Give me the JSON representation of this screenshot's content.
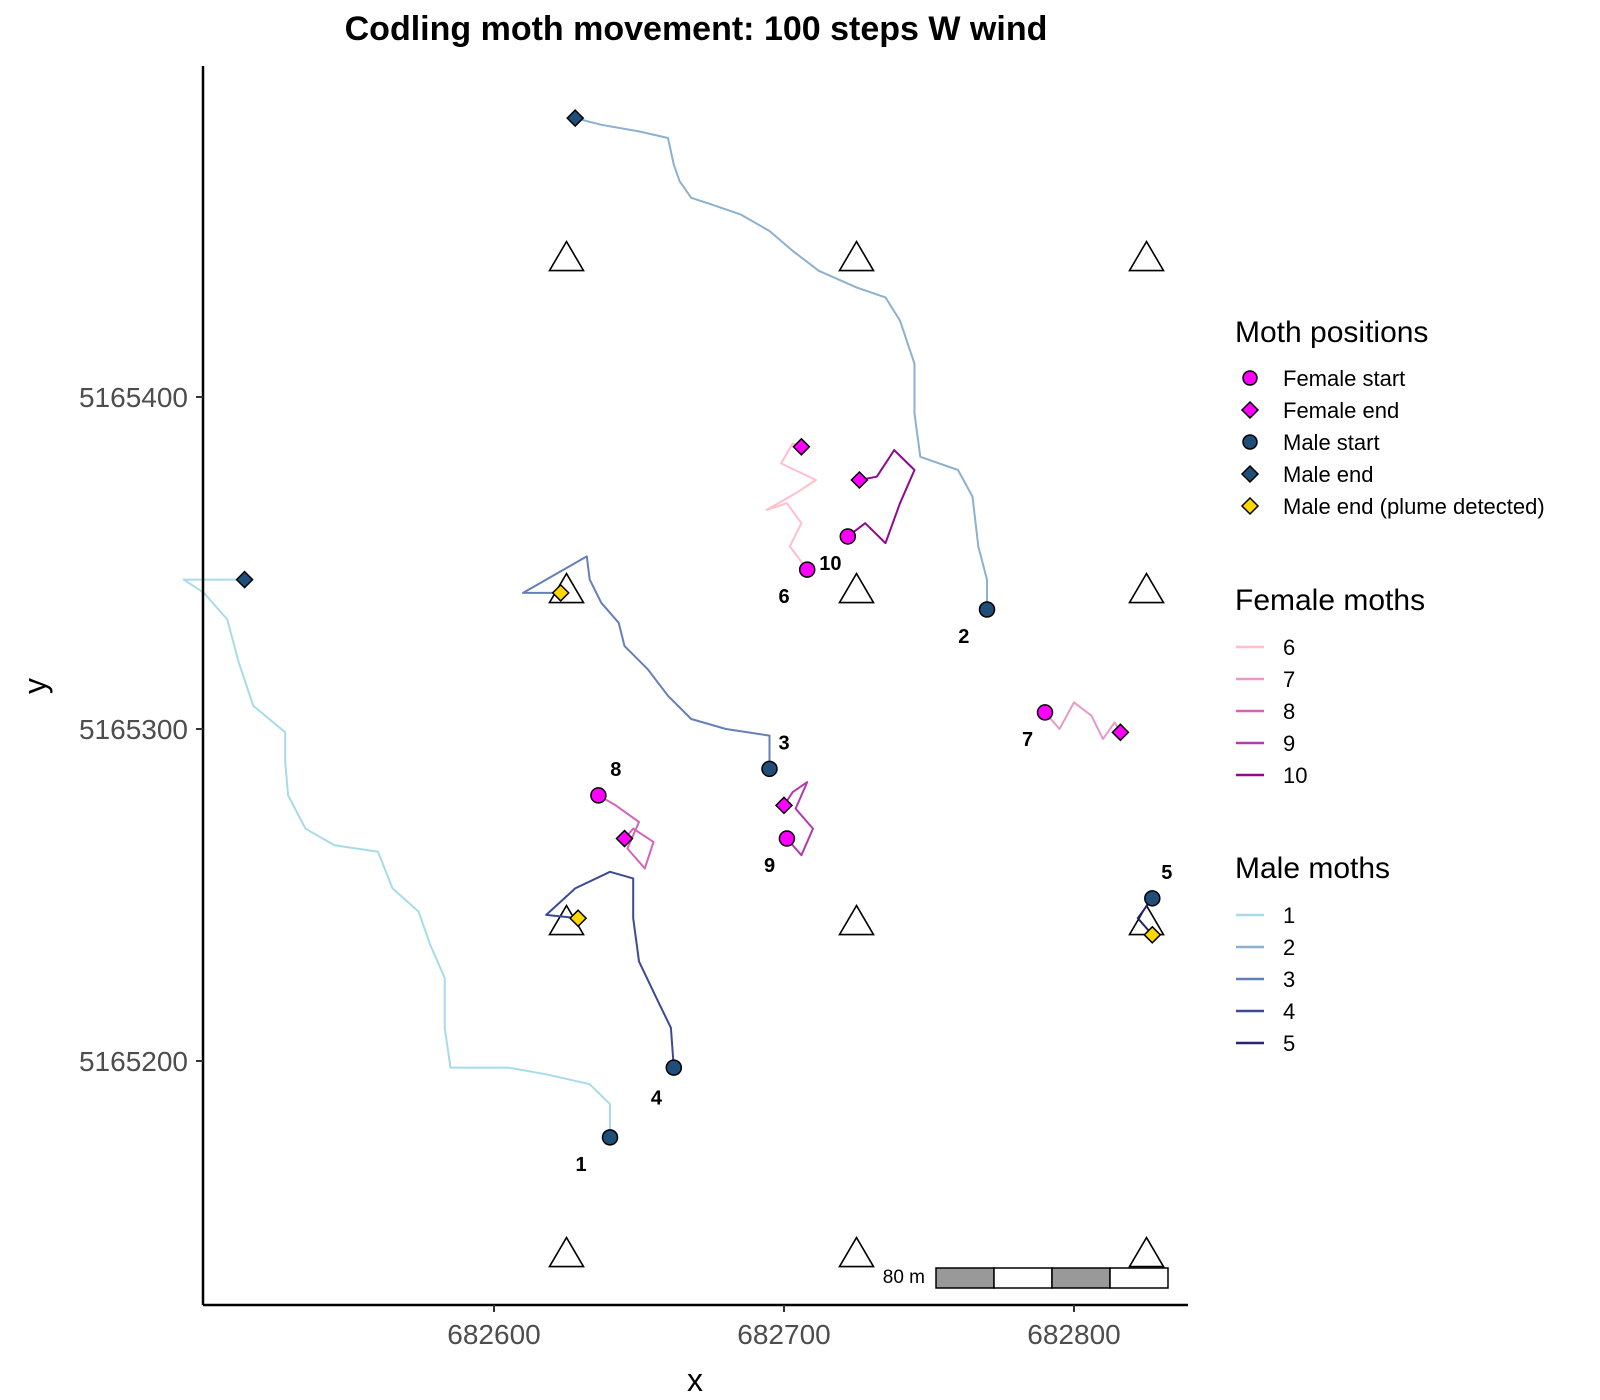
{
  "chart_data": {
    "type": "scatter",
    "title": "Codling moth movement: 100 steps W wind",
    "xlabel": "x",
    "ylabel": "y",
    "xlim": [
      682500,
      682840
    ],
    "ylim": [
      5165127,
      5165502
    ],
    "x_ticks": [
      682600,
      682700,
      682800
    ],
    "y_ticks": [
      5165200,
      5165300,
      5165400
    ],
    "grid": false,
    "legend_position": "right",
    "traps": [
      [
        682625,
        5165442
      ],
      [
        682725,
        5165442
      ],
      [
        682825,
        5165442
      ],
      [
        682625,
        5165342
      ],
      [
        682725,
        5165342
      ],
      [
        682825,
        5165342
      ],
      [
        682625,
        5165242
      ],
      [
        682725,
        5165242
      ],
      [
        682825,
        5165242
      ],
      [
        682625,
        5165142
      ],
      [
        682725,
        5165142
      ],
      [
        682825,
        5165142
      ]
    ],
    "legends": {
      "positions": {
        "title": "Moth positions",
        "entries": [
          {
            "label": "Female start",
            "shape": "circle",
            "fill": "#ff00ff"
          },
          {
            "label": "Female end",
            "shape": "diamond",
            "fill": "#ff00ff"
          },
          {
            "label": "Male start",
            "shape": "circle",
            "fill": "#1f4e79"
          },
          {
            "label": "Male end",
            "shape": "diamond",
            "fill": "#1f4e79"
          },
          {
            "label": "Male end (plume detected)",
            "shape": "diamond",
            "fill": "#ffd700"
          }
        ]
      },
      "female": {
        "title": "Female moths",
        "entries": [
          {
            "label": "6",
            "color": "#ffbfcb"
          },
          {
            "label": "7",
            "color": "#e899c9"
          },
          {
            "label": "8",
            "color": "#d166b8"
          },
          {
            "label": "9",
            "color": "#b33aa9"
          },
          {
            "label": "10",
            "color": "#91098f"
          }
        ]
      },
      "male": {
        "title": "Male moths",
        "entries": [
          {
            "label": "1",
            "color": "#a8dbe8"
          },
          {
            "label": "2",
            "color": "#8cb1cf"
          },
          {
            "label": "3",
            "color": "#6480b5"
          },
          {
            "label": "4",
            "color": "#3c4a94"
          },
          {
            "label": "5",
            "color": "#23256f"
          }
        ]
      }
    },
    "series": [
      {
        "name": "1",
        "group": "male",
        "color": "#a8dbe8",
        "end_type": "male_end",
        "start": [
          682640,
          5165177
        ],
        "end": [
          682514,
          5165345
        ],
        "label_at": [
          682630,
          5165169
        ],
        "path": [
          [
            682640,
            5165177
          ],
          [
            682640,
            5165187
          ],
          [
            682633,
            5165193
          ],
          [
            682618,
            5165196
          ],
          [
            682605,
            5165198
          ],
          [
            682585,
            5165198
          ],
          [
            682583,
            5165210
          ],
          [
            682583,
            5165225
          ],
          [
            682578,
            5165235
          ],
          [
            682574,
            5165245
          ],
          [
            682565,
            5165252
          ],
          [
            682560,
            5165263
          ],
          [
            682545,
            5165265
          ],
          [
            682535,
            5165270
          ],
          [
            682529,
            5165280
          ],
          [
            682528,
            5165290
          ],
          [
            682528,
            5165299
          ],
          [
            682517,
            5165307
          ],
          [
            682512,
            5165320
          ],
          [
            682508,
            5165333
          ],
          [
            682500,
            5165341
          ],
          [
            682493,
            5165345
          ],
          [
            682514,
            5165345
          ]
        ]
      },
      {
        "name": "2",
        "group": "male",
        "color": "#8cb1cf",
        "end_type": "male_end",
        "start": [
          682770,
          5165336
        ],
        "end": [
          682628,
          5165484
        ],
        "label_at": [
          682762,
          5165328
        ],
        "path": [
          [
            682770,
            5165336
          ],
          [
            682770,
            5165345
          ],
          [
            682767,
            5165355
          ],
          [
            682765,
            5165370
          ],
          [
            682760,
            5165378
          ],
          [
            682747,
            5165382
          ],
          [
            682745,
            5165395
          ],
          [
            682745,
            5165410
          ],
          [
            682740,
            5165423
          ],
          [
            682735,
            5165430
          ],
          [
            682725,
            5165433
          ],
          [
            682712,
            5165438
          ],
          [
            682703,
            5165444
          ],
          [
            682695,
            5165450
          ],
          [
            682685,
            5165455
          ],
          [
            682675,
            5165458
          ],
          [
            682668,
            5165460
          ],
          [
            682664,
            5165465
          ],
          [
            682662,
            5165470
          ],
          [
            682660,
            5165478
          ],
          [
            682650,
            5165480
          ],
          [
            682637,
            5165482
          ],
          [
            682628,
            5165484
          ]
        ]
      },
      {
        "name": "3",
        "group": "male",
        "color": "#6480b5",
        "end_type": "plume",
        "start": [
          682695,
          5165288
        ],
        "end": [
          682623,
          5165341
        ],
        "label_at": [
          682700,
          5165296
        ],
        "path": [
          [
            682695,
            5165288
          ],
          [
            682695,
            5165298
          ],
          [
            682680,
            5165300
          ],
          [
            682668,
            5165303
          ],
          [
            682660,
            5165310
          ],
          [
            682653,
            5165318
          ],
          [
            682645,
            5165325
          ],
          [
            682643,
            5165332
          ],
          [
            682637,
            5165338
          ],
          [
            682633,
            5165345
          ],
          [
            682632,
            5165352
          ],
          [
            682618,
            5165345
          ],
          [
            682610,
            5165341
          ],
          [
            682623,
            5165341
          ]
        ]
      },
      {
        "name": "4",
        "group": "male",
        "color": "#3c4a94",
        "end_type": "plume",
        "start": [
          682662,
          5165198
        ],
        "end": [
          682629,
          5165243
        ],
        "label_at": [
          682656,
          5165189
        ],
        "path": [
          [
            682662,
            5165198
          ],
          [
            682661,
            5165210
          ],
          [
            682656,
            5165219
          ],
          [
            682650,
            5165230
          ],
          [
            682648,
            5165243
          ],
          [
            682648,
            5165255
          ],
          [
            682640,
            5165257
          ],
          [
            682628,
            5165252
          ],
          [
            682618,
            5165244
          ],
          [
            682629,
            5165243
          ]
        ]
      },
      {
        "name": "5",
        "group": "male",
        "color": "#23256f",
        "end_type": "plume",
        "start": [
          682827,
          5165249
        ],
        "end": [
          682827,
          5165238
        ],
        "label_at": [
          682832,
          5165257
        ],
        "path": [
          [
            682827,
            5165249
          ],
          [
            682822,
            5165243
          ],
          [
            682827,
            5165238
          ]
        ]
      },
      {
        "name": "6",
        "group": "female",
        "color": "#ffbfcb",
        "start": [
          682708,
          5165348
        ],
        "end": [
          682706,
          5165385
        ],
        "label_at": [
          682700,
          5165340
        ],
        "path": [
          [
            682708,
            5165348
          ],
          [
            682702,
            5165355
          ],
          [
            682706,
            5165362
          ],
          [
            682701,
            5165368
          ],
          [
            682694,
            5165366
          ],
          [
            682704,
            5165371
          ],
          [
            682711,
            5165375
          ],
          [
            682699,
            5165380
          ],
          [
            682703,
            5165386
          ],
          [
            682706,
            5165385
          ]
        ]
      },
      {
        "name": "7",
        "group": "female",
        "color": "#e899c9",
        "start": [
          682790,
          5165305
        ],
        "end": [
          682816,
          5165299
        ],
        "label_at": [
          682784,
          5165297
        ],
        "path": [
          [
            682790,
            5165305
          ],
          [
            682795,
            5165300
          ],
          [
            682800,
            5165308
          ],
          [
            682806,
            5165304
          ],
          [
            682810,
            5165297
          ],
          [
            682814,
            5165302
          ],
          [
            682816,
            5165299
          ]
        ]
      },
      {
        "name": "8",
        "group": "female",
        "color": "#d166b8",
        "start": [
          682636,
          5165280
        ],
        "end": [
          682645,
          5165267
        ],
        "label_at": [
          682642,
          5165288
        ],
        "path": [
          [
            682636,
            5165280
          ],
          [
            682642,
            5165277
          ],
          [
            682650,
            5165272
          ],
          [
            682646,
            5165264
          ],
          [
            682652,
            5165258
          ],
          [
            682655,
            5165266
          ],
          [
            682648,
            5165270
          ],
          [
            682645,
            5165267
          ]
        ]
      },
      {
        "name": "9",
        "group": "female",
        "color": "#b33aa9",
        "start": [
          682701,
          5165267
        ],
        "end": [
          682700,
          5165277
        ],
        "label_at": [
          682695,
          5165259
        ],
        "path": [
          [
            682701,
            5165267
          ],
          [
            682706,
            5165262
          ],
          [
            682710,
            5165270
          ],
          [
            682704,
            5165276
          ],
          [
            682708,
            5165284
          ],
          [
            682703,
            5165281
          ],
          [
            682700,
            5165277
          ]
        ]
      },
      {
        "name": "10",
        "group": "female",
        "color": "#91098f",
        "start": [
          682722,
          5165358
        ],
        "end": [
          682726,
          5165375
        ],
        "label_at": [
          682716,
          5165350
        ],
        "path": [
          [
            682722,
            5165358
          ],
          [
            682728,
            5165362
          ],
          [
            682735,
            5165356
          ],
          [
            682740,
            5165368
          ],
          [
            682745,
            5165378
          ],
          [
            682738,
            5165384
          ],
          [
            682732,
            5165376
          ],
          [
            682726,
            5165375
          ]
        ]
      }
    ]
  }
}
